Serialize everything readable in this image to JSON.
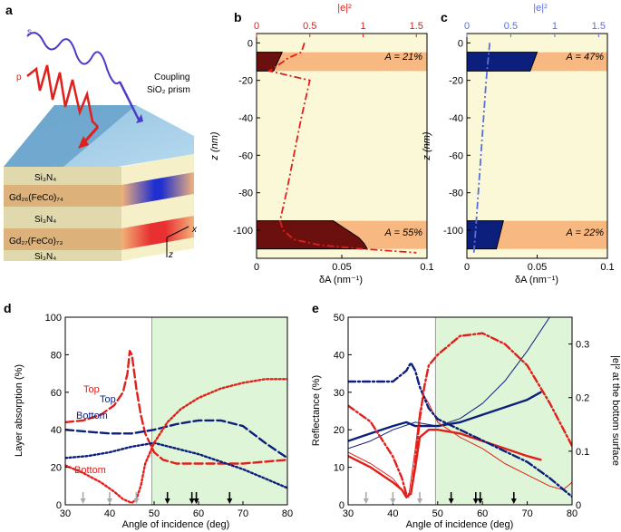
{
  "panel_a": {
    "letter": "a",
    "beam_s": "s",
    "beam_p": "p",
    "prism_label_1": "Coupling",
    "prism_label_2": "SiO₂ prism",
    "layers": [
      {
        "label": "Si₃N₄",
        "color": "#f5f0c8"
      },
      {
        "label": "Gd₂₆(FeCo)₇₄",
        "color": "#f2b27a"
      },
      {
        "label": "Si₃N₄",
        "color": "#f5f0c8"
      },
      {
        "label": "Gd₂₇(FeCo)₇₃",
        "color": "#f2b27a"
      },
      {
        "label": "Si₃N₄",
        "color": "#f5f0c8"
      }
    ],
    "axis_x": "x",
    "axis_z": "z",
    "colors": {
      "s_beam": "#4a3cc9",
      "p_beam": "#e0201b",
      "prism": "#7fb6d9",
      "hot_spot_top": "#2030d0",
      "hot_spot_bottom": "#e83030"
    }
  },
  "chart_data": [
    {
      "id": "b",
      "type": "area",
      "letter": "b",
      "xlabel": "δA (nm⁻¹)",
      "ylabel": "z (nm)",
      "top_axis_label": "|e|²",
      "top_axis_ticks": [
        0,
        0.5,
        1,
        1.5
      ],
      "top_axis_range": [
        0,
        1.6
      ],
      "xlim": [
        0,
        0.1
      ],
      "ylim": [
        -115,
        5
      ],
      "x_ticks": [
        0,
        0.05,
        0.1
      ],
      "y_ticks": [
        0,
        -20,
        -40,
        -60,
        -80,
        -100
      ],
      "layers": [
        {
          "name": "top magnetic layer",
          "z": [
            -5,
            -15
          ],
          "absorption_label": "A = 21%"
        },
        {
          "name": "bottom magnetic layer",
          "z": [
            -95,
            -110
          ],
          "absorption_label": "A = 55%"
        }
      ],
      "deltaA_top": {
        "z": [
          -5,
          -7,
          -9,
          -11,
          -13,
          -15
        ],
        "values": [
          0.015,
          0.014,
          0.013,
          0.012,
          0.011,
          0.01
        ]
      },
      "deltaA_bottom": {
        "z": [
          -95,
          -98,
          -101,
          -104,
          -107,
          -110
        ],
        "values": [
          0.045,
          0.05,
          0.055,
          0.06,
          0.063,
          0.065
        ]
      },
      "e2_profile": {
        "z": [
          0,
          -5,
          -8,
          -12,
          -15,
          -20,
          -40,
          -60,
          -80,
          -95,
          -100,
          -105,
          -108,
          -110,
          -112
        ],
        "values": [
          0.45,
          0.42,
          0.3,
          0.2,
          0.12,
          0.5,
          0.42,
          0.35,
          0.28,
          0.22,
          0.25,
          0.35,
          0.6,
          1.0,
          1.5
        ]
      },
      "colors": {
        "background": "#fbf8d8",
        "layer": "#f7b882",
        "fill": "#6b0f0f",
        "curve": "#e0201b"
      }
    },
    {
      "id": "c",
      "type": "area",
      "letter": "c",
      "xlabel": "δA (nm⁻¹)",
      "ylabel": "z (nm)",
      "top_axis_label": "|e|²",
      "top_axis_ticks": [
        0,
        0.5,
        1,
        1.5
      ],
      "top_axis_range": [
        0,
        1.6
      ],
      "xlim": [
        0,
        0.1
      ],
      "ylim": [
        -115,
        5
      ],
      "x_ticks": [
        0,
        0.05,
        0.1
      ],
      "y_ticks": [
        0,
        -20,
        -40,
        -60,
        -80,
        -100
      ],
      "layers": [
        {
          "name": "top magnetic layer",
          "z": [
            -5,
            -15
          ],
          "absorption_label": "A = 47%"
        },
        {
          "name": "bottom magnetic layer",
          "z": [
            -95,
            -110
          ],
          "absorption_label": "A = 22%"
        }
      ],
      "deltaA_top": {
        "z": [
          -5,
          -7,
          -9,
          -11,
          -13,
          -15
        ],
        "values": [
          0.05,
          0.049,
          0.048,
          0.047,
          0.046,
          0.045
        ]
      },
      "deltaA_bottom": {
        "z": [
          -95,
          -98,
          -101,
          -104,
          -107,
          -110
        ],
        "values": [
          0.026,
          0.025,
          0.024,
          0.023,
          0.022,
          0.021
        ]
      },
      "e2_profile": {
        "z": [
          0,
          -10,
          -20,
          -40,
          -60,
          -80,
          -100,
          -112
        ],
        "values": [
          0.26,
          0.24,
          0.22,
          0.19,
          0.16,
          0.13,
          0.1,
          0.08
        ]
      },
      "colors": {
        "background": "#fbf8d8",
        "layer": "#f7b882",
        "fill": "#0c1f7c",
        "curve": "#5b6ee0"
      }
    },
    {
      "id": "d",
      "type": "line",
      "letter": "d",
      "xlabel": "Angle of incidence (deg)",
      "ylabel": "Layer absorption (%)",
      "xlim": [
        30,
        80
      ],
      "ylim": [
        0,
        100
      ],
      "x_ticks": [
        30,
        40,
        50,
        60,
        70,
        80
      ],
      "y_ticks": [
        0,
        20,
        40,
        60,
        80,
        100
      ],
      "shaded_region": [
        49.5,
        80
      ],
      "annotations": [
        "Top",
        "Top",
        "Bottom",
        "Bottom"
      ],
      "arrow_angles_grey": [
        34,
        40,
        46
      ],
      "arrow_angles_black": [
        53,
        58.5,
        59.5,
        67
      ],
      "series": [
        {
          "name": "p Top",
          "style": "dashed",
          "color": "#e0201b",
          "x": [
            30,
            34,
            38,
            41,
            43,
            44,
            44.5,
            45,
            46,
            47,
            48,
            50,
            52,
            55,
            60,
            65,
            70,
            75,
            80
          ],
          "values": [
            44,
            45,
            48,
            53,
            60,
            70,
            82,
            80,
            62,
            48,
            38,
            28,
            24,
            22,
            22,
            22,
            22,
            23,
            24
          ]
        },
        {
          "name": "s Top",
          "style": "dashed",
          "color": "#0c1f7c",
          "x": [
            30,
            35,
            40,
            45,
            50,
            55,
            60,
            65,
            70,
            75,
            80
          ],
          "values": [
            40,
            39,
            38,
            38,
            40,
            43,
            45,
            45,
            42,
            33,
            25
          ]
        },
        {
          "name": "s Bottom",
          "style": "dotted",
          "color": "#0c1f7c",
          "x": [
            30,
            35,
            40,
            45,
            50,
            55,
            60,
            65,
            70,
            75,
            80
          ],
          "values": [
            25,
            26,
            28,
            31,
            33,
            30,
            27,
            23,
            19,
            14,
            9
          ]
        },
        {
          "name": "p Bottom",
          "style": "dotted",
          "color": "#e0201b",
          "x": [
            30,
            34,
            38,
            41,
            43,
            45,
            46,
            47,
            48,
            50,
            53,
            56,
            60,
            65,
            70,
            75,
            80
          ],
          "values": [
            21,
            17,
            12,
            7,
            3,
            1,
            3,
            10,
            22,
            33,
            44,
            51,
            57,
            62,
            65,
            67,
            67
          ]
        }
      ],
      "colors": {
        "shade": "#dff5d8"
      }
    },
    {
      "id": "e",
      "type": "line",
      "letter": "e",
      "xlabel": "Angle of incidence (deg)",
      "ylabel": "Reflectance (%)",
      "y2label": "|e|² at the bottom surface",
      "xlim": [
        30,
        80
      ],
      "ylim": [
        0,
        50
      ],
      "y2lim": [
        0,
        0.35
      ],
      "x_ticks": [
        30,
        40,
        50,
        60,
        70,
        80
      ],
      "y_ticks": [
        0,
        10,
        20,
        30,
        40,
        50
      ],
      "y2_ticks": [
        0,
        0.1,
        0.2,
        0.3
      ],
      "shaded_region": [
        49.5,
        80
      ],
      "arrow_angles_grey": [
        34,
        40,
        46
      ],
      "arrow_angles_black": [
        53,
        58.5,
        59.5,
        67
      ],
      "series": [
        {
          "name": "s reflectance thick",
          "style": "solid",
          "axis": "left",
          "color": "#0c1f7c",
          "x": [
            30,
            35,
            40,
            43,
            45,
            48,
            50,
            55,
            60,
            65,
            70,
            73
          ],
          "values": [
            17,
            19,
            21,
            22,
            21,
            21,
            21,
            22,
            24,
            26,
            28,
            30
          ]
        },
        {
          "name": "s reflectance thin",
          "style": "solid-thin",
          "axis": "left",
          "color": "#0c1f7c",
          "x": [
            30,
            35,
            40,
            45,
            50,
            55,
            60,
            65,
            70,
            75
          ],
          "values": [
            15,
            17,
            20,
            22,
            21,
            23,
            27,
            33,
            41,
            50
          ]
        },
        {
          "name": "p reflectance thick",
          "style": "solid",
          "axis": "left",
          "color": "#e0201b",
          "x": [
            30,
            35,
            40,
            42,
            43,
            44,
            45,
            46,
            48,
            50,
            55,
            60,
            65,
            70,
            73
          ],
          "values": [
            13,
            10,
            6,
            4,
            2,
            3,
            10,
            18,
            20,
            20,
            19,
            17,
            15,
            13,
            12
          ]
        },
        {
          "name": "p reflectance thin",
          "style": "solid-thin",
          "axis": "left",
          "color": "#e0201b",
          "x": [
            30,
            35,
            40,
            42,
            43.5,
            45,
            46,
            47,
            48,
            50,
            55,
            60,
            65,
            70,
            75,
            78,
            80
          ],
          "values": [
            14,
            11,
            7,
            4,
            2,
            15,
            25,
            29,
            27,
            22,
            18,
            15,
            11,
            8,
            5,
            4,
            6
          ]
        },
        {
          "name": "s |e|2",
          "style": "dashdot",
          "axis": "right",
          "color": "#0c1f7c",
          "x": [
            30,
            35,
            40,
            43,
            44,
            45,
            46,
            48,
            50,
            55,
            60,
            65,
            70,
            75,
            80
          ],
          "values": [
            0.23,
            0.23,
            0.23,
            0.25,
            0.265,
            0.25,
            0.22,
            0.18,
            0.16,
            0.14,
            0.12,
            0.1,
            0.08,
            0.05,
            0.015
          ]
        },
        {
          "name": "p |e|2",
          "style": "dashdot",
          "axis": "right",
          "color": "#e0201b",
          "x": [
            30,
            35,
            40,
            42,
            43,
            44,
            45,
            46,
            47,
            48,
            50,
            55,
            60,
            65,
            70,
            75,
            80
          ],
          "values": [
            0.185,
            0.155,
            0.09,
            0.05,
            0.02,
            0.02,
            0.08,
            0.16,
            0.22,
            0.26,
            0.28,
            0.315,
            0.32,
            0.3,
            0.26,
            0.19,
            0.11
          ]
        }
      ],
      "colors": {
        "shade": "#dff5d8"
      }
    }
  ]
}
